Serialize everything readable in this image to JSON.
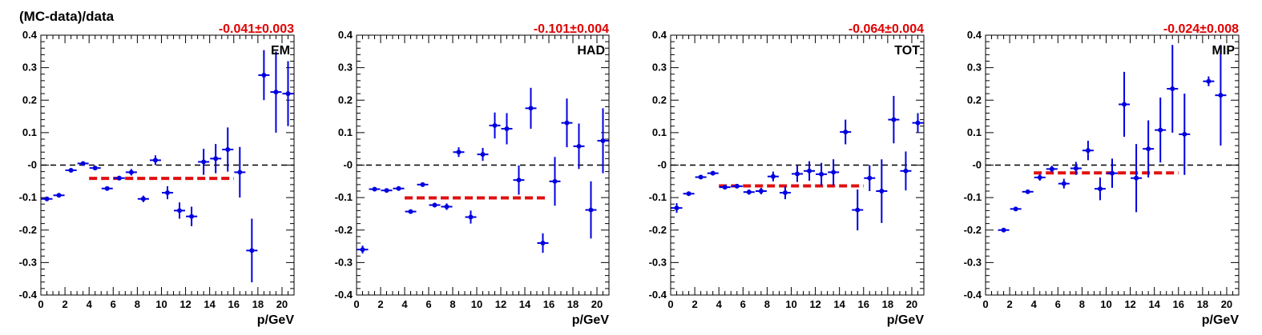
{
  "figure": {
    "title": "(MC-data)/data"
  },
  "colors": {
    "points": "#0000e0",
    "fit_line": "#e01010",
    "fit_text": "#e00000",
    "zero_line": "#000000",
    "axes": "#000000"
  },
  "chart_data": [
    {
      "type": "scatter",
      "label": "EM",
      "fit_result": "-0.041±0.003",
      "fit": {
        "y": -0.041,
        "x_range": [
          4,
          16
        ]
      },
      "xlabel": "p/GeV",
      "ylabel": "(MC-data)/data",
      "xlim": [
        0,
        21
      ],
      "ylim": [
        -0.4,
        0.4
      ],
      "zero_line": true,
      "x_ticks": [
        0,
        2,
        4,
        6,
        8,
        10,
        12,
        14,
        16,
        18,
        20
      ],
      "y_ticks": [
        -0.4,
        -0.3,
        -0.2,
        -0.1,
        0,
        0.1,
        0.2,
        0.3,
        0.4
      ],
      "x_tick_labels": [
        "0",
        "2",
        "4",
        "6",
        "8",
        "10",
        "12",
        "14",
        "16",
        "18",
        "20"
      ],
      "y_tick_labels": [
        "-0.4",
        "-0.3",
        "-0.2",
        "-0.1",
        "-0",
        "0.1",
        "0.2",
        "0.3",
        "0.4"
      ],
      "points": [
        {
          "x": 0.5,
          "y": -0.104,
          "err": 0.004
        },
        {
          "x": 1.5,
          "y": -0.093,
          "err": 0.004
        },
        {
          "x": 2.5,
          "y": -0.016,
          "err": 0.005
        },
        {
          "x": 3.5,
          "y": 0.005,
          "err": 0.006
        },
        {
          "x": 4.5,
          "y": -0.009,
          "err": 0.006
        },
        {
          "x": 5.5,
          "y": -0.072,
          "err": 0.006
        },
        {
          "x": 6.5,
          "y": -0.04,
          "err": 0.007
        },
        {
          "x": 7.5,
          "y": -0.022,
          "err": 0.01
        },
        {
          "x": 8.5,
          "y": -0.104,
          "err": 0.01
        },
        {
          "x": 9.5,
          "y": 0.015,
          "err": 0.015
        },
        {
          "x": 10.5,
          "y": -0.085,
          "err": 0.02
        },
        {
          "x": 11.5,
          "y": -0.14,
          "err": 0.025
        },
        {
          "x": 12.5,
          "y": -0.158,
          "err": 0.03
        },
        {
          "x": 13.5,
          "y": 0.01,
          "err": 0.04
        },
        {
          "x": 14.5,
          "y": 0.02,
          "err": 0.045
        },
        {
          "x": 15.5,
          "y": 0.048,
          "err": 0.068
        },
        {
          "x": 16.5,
          "y": -0.022,
          "err": 0.078
        },
        {
          "x": 17.5,
          "y": -0.263,
          "err": 0.098
        },
        {
          "x": 18.5,
          "y": 0.277,
          "err": 0.077
        },
        {
          "x": 19.5,
          "y": 0.225,
          "err": 0.125
        },
        {
          "x": 20.5,
          "y": 0.22,
          "err": 0.1
        }
      ]
    },
    {
      "type": "scatter",
      "label": "HAD",
      "fit_result": "-0.101±0.004",
      "fit": {
        "y": -0.101,
        "x_range": [
          4,
          16
        ]
      },
      "xlabel": "p/GeV",
      "xlim": [
        0,
        21
      ],
      "ylim": [
        -0.4,
        0.4
      ],
      "zero_line": true,
      "x_ticks": [
        0,
        2,
        4,
        6,
        8,
        10,
        12,
        14,
        16,
        18,
        20
      ],
      "y_ticks": [
        -0.4,
        -0.3,
        -0.2,
        -0.1,
        0,
        0.1,
        0.2,
        0.3,
        0.4
      ],
      "x_tick_labels": [
        "0",
        "2",
        "4",
        "6",
        "8",
        "10",
        "12",
        "14",
        "16",
        "18",
        "20"
      ],
      "y_tick_labels": [
        "-0.4",
        "-0.3",
        "-0.2",
        "-0.1",
        "-0",
        "0.1",
        "0.2",
        "0.3",
        "0.4"
      ],
      "points": [
        {
          "x": 0.5,
          "y": -0.26,
          "err": 0.012
        },
        {
          "x": 1.5,
          "y": -0.074,
          "err": 0.005
        },
        {
          "x": 2.5,
          "y": -0.078,
          "err": 0.005
        },
        {
          "x": 3.5,
          "y": -0.072,
          "err": 0.005
        },
        {
          "x": 4.5,
          "y": -0.143,
          "err": 0.005
        },
        {
          "x": 5.5,
          "y": -0.06,
          "err": 0.006
        },
        {
          "x": 6.5,
          "y": -0.123,
          "err": 0.007
        },
        {
          "x": 7.5,
          "y": -0.128,
          "err": 0.01
        },
        {
          "x": 8.5,
          "y": 0.04,
          "err": 0.015
        },
        {
          "x": 9.5,
          "y": -0.16,
          "err": 0.02
        },
        {
          "x": 10.5,
          "y": 0.033,
          "err": 0.02
        },
        {
          "x": 11.5,
          "y": 0.122,
          "err": 0.04
        },
        {
          "x": 12.5,
          "y": 0.112,
          "err": 0.048
        },
        {
          "x": 13.5,
          "y": -0.046,
          "err": 0.045
        },
        {
          "x": 14.5,
          "y": 0.175,
          "err": 0.063
        },
        {
          "x": 15.5,
          "y": -0.24,
          "err": 0.03
        },
        {
          "x": 16.5,
          "y": -0.05,
          "err": 0.075
        },
        {
          "x": 17.5,
          "y": 0.13,
          "err": 0.075
        },
        {
          "x": 18.5,
          "y": 0.058,
          "err": 0.07
        },
        {
          "x": 19.5,
          "y": -0.138,
          "err": 0.088
        },
        {
          "x": 20.5,
          "y": 0.075,
          "err": 0.1
        }
      ]
    },
    {
      "type": "scatter",
      "label": "TOT",
      "fit_result": "-0.064±0.004",
      "fit": {
        "y": -0.064,
        "x_range": [
          4,
          16
        ]
      },
      "xlabel": "p/GeV",
      "xlim": [
        0,
        21
      ],
      "ylim": [
        -0.4,
        0.4
      ],
      "zero_line": true,
      "x_ticks": [
        0,
        2,
        4,
        6,
        8,
        10,
        12,
        14,
        16,
        18,
        20
      ],
      "y_ticks": [
        -0.4,
        -0.3,
        -0.2,
        -0.1,
        0,
        0.1,
        0.2,
        0.3,
        0.4
      ],
      "x_tick_labels": [
        "0",
        "2",
        "4",
        "6",
        "8",
        "10",
        "12",
        "14",
        "16",
        "18",
        "20"
      ],
      "y_tick_labels": [
        "-0.4",
        "-0.3",
        "-0.2",
        "-0.1",
        "-0",
        "0.1",
        "0.2",
        "0.3",
        "0.4"
      ],
      "points": [
        {
          "x": 0.5,
          "y": -0.132,
          "err": 0.015
        },
        {
          "x": 1.5,
          "y": -0.088,
          "err": 0.006
        },
        {
          "x": 2.5,
          "y": -0.037,
          "err": 0.005
        },
        {
          "x": 3.5,
          "y": -0.025,
          "err": 0.005
        },
        {
          "x": 4.5,
          "y": -0.068,
          "err": 0.005
        },
        {
          "x": 5.5,
          "y": -0.065,
          "err": 0.006
        },
        {
          "x": 6.5,
          "y": -0.083,
          "err": 0.008
        },
        {
          "x": 7.5,
          "y": -0.08,
          "err": 0.01
        },
        {
          "x": 8.5,
          "y": -0.035,
          "err": 0.015
        },
        {
          "x": 9.5,
          "y": -0.085,
          "err": 0.02
        },
        {
          "x": 10.5,
          "y": -0.027,
          "err": 0.025
        },
        {
          "x": 11.5,
          "y": -0.018,
          "err": 0.03
        },
        {
          "x": 12.5,
          "y": -0.028,
          "err": 0.035
        },
        {
          "x": 13.5,
          "y": -0.022,
          "err": 0.04
        },
        {
          "x": 14.5,
          "y": 0.102,
          "err": 0.038
        },
        {
          "x": 15.5,
          "y": -0.138,
          "err": 0.063
        },
        {
          "x": 16.5,
          "y": -0.04,
          "err": 0.04
        },
        {
          "x": 17.5,
          "y": -0.08,
          "err": 0.098
        },
        {
          "x": 18.5,
          "y": 0.14,
          "err": 0.073
        },
        {
          "x": 19.5,
          "y": -0.018,
          "err": 0.06
        },
        {
          "x": 20.5,
          "y": 0.13,
          "err": 0.03
        }
      ]
    },
    {
      "type": "scatter",
      "label": "MIP",
      "fit_result": "-0.024±0.008",
      "fit": {
        "y": -0.024,
        "x_range": [
          4,
          16
        ]
      },
      "xlabel": "p/GeV",
      "xlim": [
        0,
        21
      ],
      "ylim": [
        -0.4,
        0.4
      ],
      "zero_line": true,
      "x_ticks": [
        0,
        2,
        4,
        6,
        8,
        10,
        12,
        14,
        16,
        18,
        20
      ],
      "y_ticks": [
        -0.4,
        -0.3,
        -0.2,
        -0.1,
        0,
        0.1,
        0.2,
        0.3,
        0.4
      ],
      "x_tick_labels": [
        "0",
        "2",
        "4",
        "6",
        "8",
        "10",
        "12",
        "14",
        "16",
        "18",
        "20"
      ],
      "y_tick_labels": [
        "-0.4",
        "-0.3",
        "-0.2",
        "-0.1",
        "-0",
        "0.1",
        "0.2",
        "0.3",
        "0.4"
      ],
      "points": [
        {
          "x": 1.5,
          "y": -0.2,
          "err": 0.005
        },
        {
          "x": 2.5,
          "y": -0.135,
          "err": 0.006
        },
        {
          "x": 3.5,
          "y": -0.082,
          "err": 0.006
        },
        {
          "x": 4.5,
          "y": -0.038,
          "err": 0.01
        },
        {
          "x": 5.5,
          "y": -0.012,
          "err": 0.01
        },
        {
          "x": 6.5,
          "y": -0.057,
          "err": 0.015
        },
        {
          "x": 7.5,
          "y": -0.01,
          "err": 0.02
        },
        {
          "x": 8.5,
          "y": 0.045,
          "err": 0.03
        },
        {
          "x": 9.5,
          "y": -0.073,
          "err": 0.035
        },
        {
          "x": 10.5,
          "y": -0.025,
          "err": 0.045
        },
        {
          "x": 11.5,
          "y": 0.187,
          "err": 0.1
        },
        {
          "x": 12.5,
          "y": -0.04,
          "err": 0.105
        },
        {
          "x": 13.5,
          "y": 0.05,
          "err": 0.088
        },
        {
          "x": 14.5,
          "y": 0.108,
          "err": 0.1
        },
        {
          "x": 15.5,
          "y": 0.235,
          "err": 0.135
        },
        {
          "x": 16.5,
          "y": 0.095,
          "err": 0.125
        },
        {
          "x": 18.5,
          "y": 0.258,
          "err": 0.015
        },
        {
          "x": 19.5,
          "y": 0.215,
          "err": 0.155
        }
      ]
    }
  ]
}
